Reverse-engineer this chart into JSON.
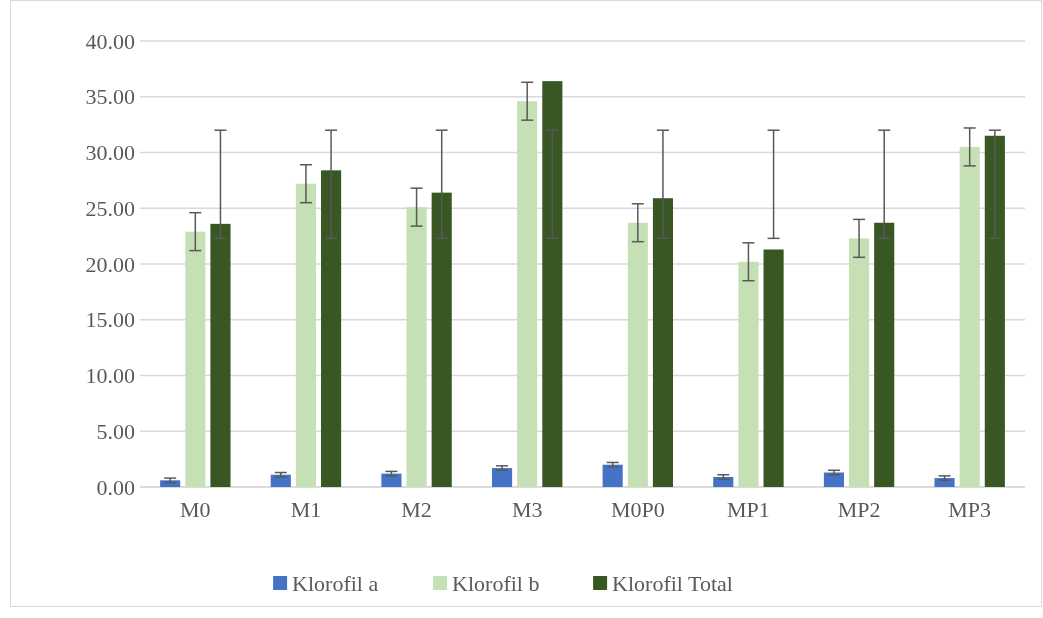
{
  "chart_data": {
    "type": "bar",
    "categories": [
      "M0",
      "M1",
      "M2",
      "M3",
      "M0P0",
      "MP1",
      "MP2",
      "MP3"
    ],
    "series": [
      {
        "name": "Klorofil a",
        "color": "#4472c4",
        "values": [
          0.6,
          1.1,
          1.2,
          1.7,
          2.0,
          0.9,
          1.3,
          0.8
        ],
        "errors": [
          0.2,
          0.2,
          0.2,
          0.2,
          0.2,
          0.2,
          0.2,
          0.2
        ]
      },
      {
        "name": "Klorofil b",
        "color": "#c5e0b4",
        "values": [
          22.9,
          27.2,
          25.1,
          34.6,
          23.7,
          20.2,
          22.3,
          30.5
        ],
        "errors": [
          1.7,
          1.7,
          1.7,
          1.7,
          1.7,
          1.7,
          1.7,
          1.7
        ]
      },
      {
        "name": "Klorofil Total",
        "color": "#385723",
        "values": [
          23.6,
          28.4,
          26.4,
          36.4,
          25.9,
          21.3,
          23.7,
          31.5
        ],
        "errors": [
          [
            22.3,
            32.0
          ],
          [
            22.3,
            32.0
          ],
          [
            22.3,
            32.0
          ],
          [
            22.3,
            32.0
          ],
          [
            22.3,
            32.0
          ],
          [
            22.3,
            32.0
          ],
          [
            22.3,
            32.0
          ],
          [
            22.3,
            32.0
          ]
        ]
      }
    ],
    "ylim": [
      0,
      40
    ],
    "yticks": [
      {
        "value": 0,
        "label": "0.00"
      },
      {
        "value": 5,
        "label": "5.00"
      },
      {
        "value": 10,
        "label": "10.00"
      },
      {
        "value": 15,
        "label": "15.00"
      },
      {
        "value": 20,
        "label": "20.00"
      },
      {
        "value": 25,
        "label": "25.00"
      },
      {
        "value": 30,
        "label": "30.00"
      },
      {
        "value": 35,
        "label": "35.00"
      },
      {
        "value": 40,
        "label": "40.00"
      }
    ],
    "grid": "y",
    "legend": "bottom"
  }
}
